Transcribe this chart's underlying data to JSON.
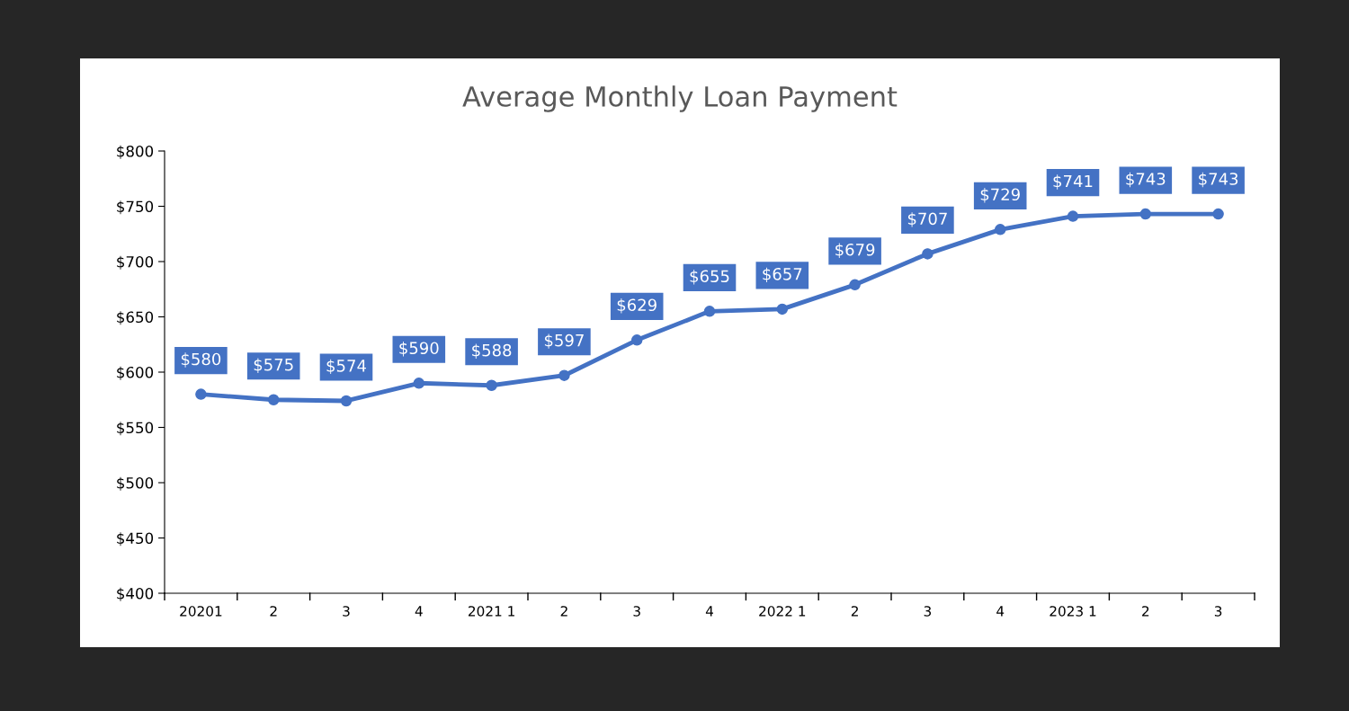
{
  "chart_data": {
    "type": "line",
    "title": "Average Monthly Loan Payment",
    "categories": [
      "20201",
      "2",
      "3",
      "4",
      "2021 1",
      "2",
      "3",
      "4",
      "2022 1",
      "2",
      "3",
      "4",
      "2023 1",
      "2",
      "3"
    ],
    "series": [
      {
        "color": "#4472c4",
        "values": [
          580,
          575,
          574,
          590,
          588,
          597,
          629,
          655,
          657,
          679,
          707,
          729,
          741,
          743,
          743
        ],
        "value_labels": [
          "$580",
          "$575",
          "$574",
          "$590",
          "$588",
          "$597",
          "$629",
          "$655",
          "$657",
          "$679",
          "$707",
          "$729",
          "$741",
          "$743",
          "$743"
        ]
      }
    ],
    "ylim": [
      400,
      800
    ],
    "yticks": [
      {
        "value": 400,
        "label": "$400"
      },
      {
        "value": 450,
        "label": "$450"
      },
      {
        "value": 500,
        "label": "$500"
      },
      {
        "value": 550,
        "label": "$550"
      },
      {
        "value": 600,
        "label": "$600"
      },
      {
        "value": 650,
        "label": "$650"
      },
      {
        "value": 700,
        "label": "$700"
      },
      {
        "value": 750,
        "label": "$750"
      },
      {
        "value": 800,
        "label": "$800"
      }
    ],
    "marker": "circle",
    "line_style": "solid",
    "grid": false,
    "legend": false
  }
}
